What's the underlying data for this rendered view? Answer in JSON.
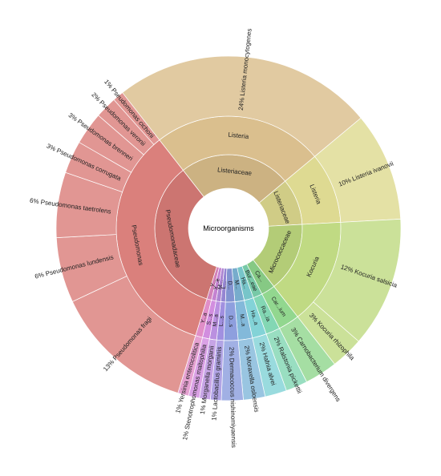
{
  "chart_data": {
    "type": "sunburst",
    "root": "Microorganisms",
    "palette": {
      "Listeria": "#d9bd8a",
      "Listeria ivanovii": "#ddd98f",
      "Kocuria": "#bed97f",
      "Carnobacterium": "#8fd68c",
      "Ralstonia": "#7fd6b2",
      "Hafnia": "#7fd2d6",
      "Moraxella": "#7fb7d9",
      "Dermacoccus": "#8a9cdd",
      "Lactobacillus": "#9e8ddf",
      "Morganella": "#b88ddf",
      "Stenotrophomonas": "#d18ade",
      "Yersinia": "#df8ac5",
      "Pseudomonas": "#d97c78"
    },
    "nodes": [
      {
        "level1": "Listeriaceae",
        "level2": "Listeria",
        "level3": "Listeria monocytogenes",
        "percent": 24,
        "color_key": "Listeria"
      },
      {
        "level1": "Listeriaceae",
        "level2": "Listeria",
        "level3": "Listeria ivanovii",
        "percent": 10,
        "color_key": "Listeria ivanovii"
      },
      {
        "level1": "Micrococcaceae",
        "level2": "Kocuria",
        "level3": "Kocuria salsicia",
        "percent": 12,
        "color_key": "Kocuria"
      },
      {
        "level1": "Micrococcaceae",
        "level2": "Kocuria",
        "level3": "Kocuria rhizophila",
        "percent": 3,
        "color_key": "Kocuria"
      },
      {
        "level1": "Ca...",
        "level2": "Car...ium",
        "level3": "Carnobacterium divergens",
        "percent": 3,
        "color_key": "Carnobacterium"
      },
      {
        "level1": "Bur...eae",
        "level2": "Ra...ia",
        "level3": "Ralstonia pickettii",
        "percent": 2,
        "color_key": "Ralstonia"
      },
      {
        "level1": "Ha...",
        "level2": "Ha...a",
        "level3": "Hafnia alvei",
        "percent": 2,
        "color_key": "Hafnia"
      },
      {
        "level1": "M...",
        "level2": "M...a",
        "level3": "Moraxella osloensis",
        "percent": 2,
        "color_key": "Moraxella"
      },
      {
        "level1": "D...",
        "level2": "D...s",
        "level3": "Dermacoccus nishinomiyaensis",
        "percent": 2,
        "color_key": "Dermacoccus"
      },
      {
        "level1": "L...",
        "level2": "L...s",
        "level3": "Lactobacillus graminis",
        "percent": 1,
        "color_key": "Lactobacillus"
      },
      {
        "level1": "M...",
        "level2": "M...a",
        "level3": "Morganella morganii",
        "percent": 1,
        "color_key": "Morganella"
      },
      {
        "level1": "X...e",
        "level2": "S...s",
        "level3": "Stenotrophomonas maltophilia",
        "percent": 1,
        "color_key": "Stenotrophomonas"
      },
      {
        "level1": "Y...",
        "level2": "Y...a",
        "level3": "Yersinia enterocolitica",
        "percent": 1,
        "color_key": "Yersinia"
      },
      {
        "level1": "Pseudomonadaceae",
        "level2": "Pseudomonas",
        "level3": "Pseudomonas fragi",
        "percent": 13,
        "color_key": "Pseudomonas"
      },
      {
        "level1": "Pseudomonadaceae",
        "level2": "Pseudomonas",
        "level3": "Pseudomonas lundensis",
        "percent": 6,
        "color_key": "Pseudomonas"
      },
      {
        "level1": "Pseudomonadaceae",
        "level2": "Pseudomonas",
        "level3": "Pseudomonas taetrolens",
        "percent": 6,
        "color_key": "Pseudomonas"
      },
      {
        "level1": "Pseudomonadaceae",
        "level2": "Pseudomonas",
        "level3": "Pseudomonas corrugata",
        "percent": 3,
        "color_key": "Pseudomonas"
      },
      {
        "level1": "Pseudomonadaceae",
        "level2": "Pseudomonas",
        "level3": "Pseudomonas brenneri",
        "percent": 3,
        "color_key": "Pseudomonas"
      },
      {
        "level1": "Pseudomonadaceae",
        "level2": "Pseudomonas",
        "level3": "Pseudomonas veronii",
        "percent": 2,
        "color_key": "Pseudomonas"
      },
      {
        "level1": "Pseudomonadaceae",
        "level2": "Pseudomonas",
        "level3": "Pseudomonas cichorii",
        "percent": 1,
        "color_key": "Pseudomonas"
      }
    ]
  }
}
